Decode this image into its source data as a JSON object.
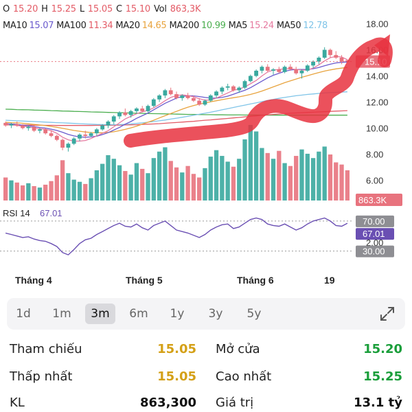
{
  "ohlc": {
    "o_label": "O",
    "o_value": "15.20",
    "h_label": "H",
    "h_value": "15.25",
    "l_label": "L",
    "l_value": "15.05",
    "c_label": "C",
    "c_value": "15.10",
    "vol_label": "Vol",
    "vol_value": "863,3K"
  },
  "ma_legend": [
    {
      "label": "MA10",
      "value": "15.07",
      "color": "#6a5acd"
    },
    {
      "label": "MA100",
      "value": "11.34",
      "color": "#e35b66"
    },
    {
      "label": "MA20",
      "value": "14.65",
      "color": "#e8a33d"
    },
    {
      "label": "MA200",
      "value": "10.99",
      "color": "#4caf50"
    },
    {
      "label": "MA5",
      "value": "15.24",
      "color": "#e67aa0"
    },
    {
      "label": "MA50",
      "value": "12.78",
      "color": "#7fc4e8"
    }
  ],
  "chart_data": {
    "type": "candlestick",
    "price_ticks": [
      "18.00",
      "16.00",
      "14.00",
      "12.00",
      "10.00",
      "8.00",
      "6.00"
    ],
    "price_range": [
      5.5,
      18.4
    ],
    "current_price_tag": "15.10",
    "volume_tag": "863.3K",
    "candles": [
      [
        10.4,
        10.5,
        10.1,
        10.2
      ],
      [
        10.2,
        10.4,
        10.0,
        10.3
      ],
      [
        10.3,
        10.5,
        10.1,
        10.2
      ],
      [
        10.2,
        10.3,
        9.9,
        10.0
      ],
      [
        10.0,
        10.2,
        9.8,
        10.1
      ],
      [
        10.1,
        10.2,
        9.7,
        9.8
      ],
      [
        9.8,
        10.0,
        9.6,
        9.9
      ],
      [
        9.9,
        10.0,
        9.5,
        9.6
      ],
      [
        9.6,
        9.8,
        9.3,
        9.4
      ],
      [
        9.4,
        9.5,
        9.0,
        9.1
      ],
      [
        9.1,
        9.2,
        8.3,
        8.5
      ],
      [
        8.5,
        8.9,
        8.2,
        8.8
      ],
      [
        8.8,
        9.3,
        8.7,
        9.2
      ],
      [
        9.2,
        9.6,
        9.0,
        9.5
      ],
      [
        9.5,
        9.8,
        9.2,
        9.4
      ],
      [
        9.4,
        9.7,
        9.3,
        9.6
      ],
      [
        9.6,
        10.0,
        9.4,
        9.9
      ],
      [
        9.9,
        10.3,
        9.8,
        10.2
      ],
      [
        10.2,
        10.6,
        10.0,
        10.5
      ],
      [
        10.5,
        11.0,
        10.3,
        10.9
      ],
      [
        10.9,
        11.3,
        10.7,
        11.2
      ],
      [
        11.2,
        11.5,
        10.9,
        11.0
      ],
      [
        11.0,
        11.4,
        10.8,
        11.3
      ],
      [
        11.3,
        11.6,
        11.1,
        11.5
      ],
      [
        11.5,
        11.7,
        11.2,
        11.3
      ],
      [
        11.3,
        11.8,
        11.2,
        11.7
      ],
      [
        11.7,
        12.3,
        11.6,
        12.2
      ],
      [
        12.2,
        12.6,
        12.0,
        12.5
      ],
      [
        12.5,
        13.0,
        12.3,
        12.9
      ],
      [
        12.9,
        13.1,
        12.5,
        12.6
      ],
      [
        12.6,
        12.8,
        12.2,
        12.3
      ],
      [
        12.3,
        12.6,
        12.1,
        12.5
      ],
      [
        12.5,
        12.7,
        12.2,
        12.3
      ],
      [
        12.3,
        12.5,
        12.0,
        12.1
      ],
      [
        12.1,
        12.3,
        11.7,
        11.8
      ],
      [
        11.8,
        12.2,
        11.7,
        12.1
      ],
      [
        12.1,
        12.6,
        12.0,
        12.5
      ],
      [
        12.5,
        12.9,
        12.3,
        12.8
      ],
      [
        12.8,
        13.2,
        12.6,
        13.1
      ],
      [
        13.1,
        13.4,
        12.9,
        13.2
      ],
      [
        13.2,
        13.3,
        12.8,
        12.9
      ],
      [
        12.9,
        13.2,
        12.7,
        13.1
      ],
      [
        13.1,
        13.7,
        13.0,
        13.6
      ],
      [
        13.6,
        14.1,
        13.5,
        14.0
      ],
      [
        14.0,
        14.5,
        13.9,
        14.4
      ],
      [
        14.4,
        14.8,
        14.2,
        14.7
      ],
      [
        14.7,
        14.9,
        14.3,
        14.4
      ],
      [
        14.4,
        14.6,
        14.1,
        14.5
      ],
      [
        14.5,
        14.7,
        14.2,
        14.3
      ],
      [
        14.3,
        14.8,
        14.2,
        14.7
      ],
      [
        14.7,
        14.9,
        14.4,
        14.5
      ],
      [
        14.5,
        14.7,
        14.1,
        14.2
      ],
      [
        14.2,
        14.5,
        13.8,
        14.4
      ],
      [
        14.4,
        14.9,
        14.3,
        14.8
      ],
      [
        14.8,
        15.2,
        14.6,
        15.1
      ],
      [
        15.1,
        15.5,
        14.9,
        15.4
      ],
      [
        15.4,
        16.2,
        15.3,
        16.0
      ],
      [
        16.0,
        16.1,
        15.4,
        15.6
      ],
      [
        15.6,
        15.9,
        15.3,
        15.4
      ],
      [
        15.4,
        15.6,
        14.9,
        15.1
      ],
      [
        15.2,
        15.25,
        15.05,
        15.1
      ]
    ],
    "volumes": [
      3.2,
      2.8,
      2.5,
      2.1,
      2.4,
      2.0,
      1.8,
      2.2,
      2.7,
      3.5,
      5.6,
      3.8,
      2.9,
      2.6,
      2.3,
      3.1,
      4.2,
      5.1,
      6.3,
      5.8,
      4.9,
      4.1,
      3.6,
      5.2,
      4.4,
      3.8,
      5.9,
      6.8,
      7.4,
      5.5,
      4.6,
      3.9,
      4.8,
      3.7,
      3.2,
      4.5,
      6.1,
      7.0,
      6.2,
      5.4,
      4.7,
      5.8,
      8.5,
      10.5,
      9.6,
      7.3,
      6.6,
      5.8,
      6.9,
      5.2,
      4.8,
      6.2,
      7.1,
      6.5,
      5.9,
      6.8,
      7.5,
      6.4,
      5.3,
      5.0,
      4.2
    ],
    "ma5": [
      10.3,
      10.25,
      10.2,
      10.15,
      10.1,
      10.0,
      9.95,
      9.9,
      9.8,
      9.6,
      9.3,
      9.1,
      9.0,
      9.0,
      9.05,
      9.2,
      9.4,
      9.6,
      9.8,
      10.1,
      10.4,
      10.7,
      10.9,
      11.1,
      11.25,
      11.35,
      11.55,
      11.8,
      12.1,
      12.35,
      12.5,
      12.55,
      12.5,
      12.4,
      12.25,
      12.15,
      12.15,
      12.3,
      12.5,
      12.7,
      12.9,
      13.0,
      13.15,
      13.4,
      13.65,
      14.0,
      14.3,
      14.45,
      14.5,
      14.55,
      14.55,
      14.5,
      14.45,
      14.45,
      14.6,
      14.85,
      15.15,
      15.4,
      15.5,
      15.45,
      15.24
    ],
    "ma10": [
      10.35,
      10.32,
      10.28,
      10.22,
      10.18,
      10.12,
      10.05,
      10.0,
      9.92,
      9.82,
      9.68,
      9.52,
      9.4,
      9.32,
      9.3,
      9.32,
      9.38,
      9.5,
      9.65,
      9.85,
      10.05,
      10.3,
      10.5,
      10.75,
      10.95,
      11.15,
      11.4,
      11.65,
      11.9,
      12.1,
      12.3,
      12.42,
      12.48,
      12.47,
      12.42,
      12.35,
      12.3,
      12.3,
      12.35,
      12.45,
      12.6,
      12.75,
      12.9,
      13.1,
      13.35,
      13.6,
      13.85,
      14.05,
      14.2,
      14.35,
      14.45,
      14.5,
      14.5,
      14.5,
      14.55,
      14.65,
      14.78,
      14.9,
      15.0,
      15.04,
      15.07
    ],
    "ma20": [
      10.45,
      10.42,
      10.4,
      10.37,
      10.33,
      10.28,
      10.24,
      10.19,
      10.13,
      10.06,
      9.98,
      9.9,
      9.82,
      9.76,
      9.7,
      9.66,
      9.64,
      9.64,
      9.67,
      9.72,
      9.8,
      9.9,
      10.02,
      10.15,
      10.3,
      10.45,
      10.6,
      10.78,
      10.95,
      11.12,
      11.28,
      11.45,
      11.6,
      11.73,
      11.84,
      11.93,
      12.02,
      12.1,
      12.18,
      12.26,
      12.33,
      12.4,
      12.48,
      12.58,
      12.7,
      12.84,
      13.0,
      13.16,
      13.32,
      13.48,
      13.62,
      13.76,
      13.9,
      14.02,
      14.14,
      14.26,
      14.37,
      14.46,
      14.54,
      14.6,
      14.65
    ],
    "ma50": [
      10.6,
      10.58,
      10.56,
      10.54,
      10.52,
      10.5,
      10.48,
      10.46,
      10.44,
      10.42,
      10.4,
      10.38,
      10.36,
      10.34,
      10.32,
      10.3,
      10.28,
      10.27,
      10.26,
      10.26,
      10.27,
      10.29,
      10.32,
      10.36,
      10.4,
      10.45,
      10.5,
      10.56,
      10.62,
      10.69,
      10.76,
      10.83,
      10.9,
      10.98,
      11.06,
      11.14,
      11.22,
      11.31,
      11.4,
      11.49,
      11.58,
      11.67,
      11.76,
      11.85,
      11.94,
      12.03,
      12.12,
      12.2,
      12.28,
      12.35,
      12.42,
      12.48,
      12.53,
      12.58,
      12.62,
      12.66,
      12.69,
      12.72,
      12.74,
      12.76,
      12.78
    ],
    "ma100": [
      10.25,
      10.24,
      10.24,
      10.23,
      10.23,
      10.22,
      10.22,
      10.21,
      10.21,
      10.2,
      10.2,
      10.2,
      10.2,
      10.2,
      10.2,
      10.2,
      10.21,
      10.21,
      10.22,
      10.22,
      10.23,
      10.24,
      10.25,
      10.26,
      10.28,
      10.3,
      10.32,
      10.34,
      10.37,
      10.4,
      10.43,
      10.46,
      10.49,
      10.52,
      10.56,
      10.6,
      10.63,
      10.67,
      10.7,
      10.74,
      10.78,
      10.82,
      10.86,
      10.9,
      10.94,
      10.98,
      11.02,
      11.05,
      11.08,
      11.11,
      11.14,
      11.16,
      11.18,
      11.2,
      11.22,
      11.24,
      11.26,
      11.28,
      11.3,
      11.32,
      11.34
    ],
    "ma200": [
      11.45,
      11.44,
      11.42,
      11.41,
      11.4,
      11.38,
      11.37,
      11.36,
      11.34,
      11.33,
      11.31,
      11.3,
      11.28,
      11.27,
      11.26,
      11.24,
      11.23,
      11.22,
      11.2,
      11.19,
      11.18,
      11.17,
      11.15,
      11.14,
      11.13,
      11.12,
      11.11,
      11.1,
      11.09,
      11.08,
      11.07,
      11.06,
      11.05,
      11.05,
      11.04,
      11.03,
      11.03,
      11.02,
      11.02,
      11.01,
      11.01,
      11.01,
      11.0,
      11.0,
      11.0,
      11.0,
      10.99,
      10.99,
      10.99,
      10.99,
      10.99,
      10.99,
      10.99,
      10.99,
      10.99,
      10.99,
      10.99,
      10.99,
      10.99,
      10.99,
      10.99
    ],
    "rsi_label": "RSI 14",
    "rsi_value": "67.01",
    "rsi_ticks": [
      "70.00",
      "2.00"
    ],
    "rsi_tag_70": "70.00",
    "rsi_tag_value": "67.01",
    "rsi_tag_30": "30.00",
    "rsi": [
      54,
      52,
      50,
      48,
      49,
      46,
      44,
      43,
      40,
      36,
      28,
      25,
      32,
      40,
      45,
      47,
      52,
      56,
      60,
      64,
      67,
      63,
      62,
      66,
      61,
      58,
      64,
      67,
      70,
      64,
      58,
      56,
      54,
      51,
      48,
      52,
      58,
      62,
      65,
      66,
      60,
      62,
      67,
      72,
      74,
      72,
      66,
      64,
      63,
      66,
      62,
      58,
      61,
      66,
      70,
      72,
      74,
      70,
      64,
      63,
      67
    ],
    "x_labels": [
      "Tháng 4",
      "Tháng 5",
      "Tháng 6",
      "19"
    ]
  },
  "periods": [
    "1d",
    "1m",
    "3m",
    "6m",
    "1y",
    "3y",
    "5y"
  ],
  "active_period": "3m",
  "stats": {
    "ref_label": "Tham chiếu",
    "ref_value": "15.05",
    "ref_color": "#d4a017",
    "open_label": "Mở cửa",
    "open_value": "15.20",
    "open_color": "#1a9e3a",
    "low_label": "Thấp nhất",
    "low_value": "15.05",
    "low_color": "#d4a017",
    "high_label": "Cao nhất",
    "high_value": "15.25",
    "high_color": "#1a9e3a",
    "vol_label": "KL",
    "vol_value": "863,300",
    "vol_color": "#111111",
    "value_label": "Giá trị",
    "value_value": "13.1 tỷ",
    "value_color": "#111111"
  },
  "colors": {
    "up": "#3aa99f",
    "down": "#e8737e",
    "rsi_line": "#6a4fb3",
    "annotation": "#e8333f"
  }
}
